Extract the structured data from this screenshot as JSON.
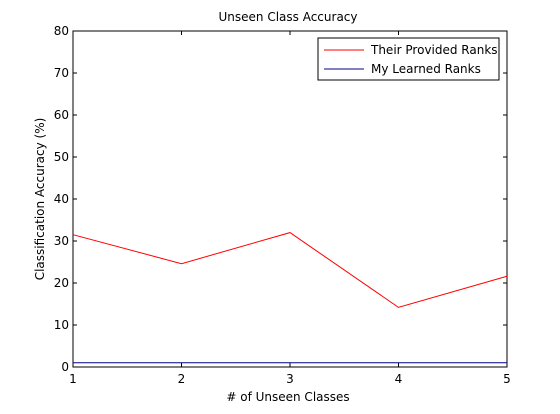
{
  "chart_data": {
    "type": "line",
    "title": "Unseen Class Accuracy",
    "xlabel": "# of Unseen Classes",
    "ylabel": "Classification Accuracy (%)",
    "xlim": [
      1,
      5
    ],
    "ylim": [
      0,
      80
    ],
    "x": [
      1,
      2,
      3,
      4,
      5
    ],
    "xticks": [
      "1",
      "2",
      "3",
      "4",
      "5"
    ],
    "yticks": [
      "0",
      "10",
      "20",
      "30",
      "40",
      "50",
      "60",
      "70",
      "80"
    ],
    "grid": false,
    "legend_position": "top-right",
    "series": [
      {
        "name": "Their Provided Ranks",
        "color": "#ff0000",
        "values": [
          31.5,
          24.6,
          32.0,
          14.2,
          21.6
        ]
      },
      {
        "name": "My Learned Ranks",
        "color": "#00008b",
        "values": [
          1.0,
          1.0,
          1.0,
          1.0,
          1.0
        ]
      }
    ]
  }
}
